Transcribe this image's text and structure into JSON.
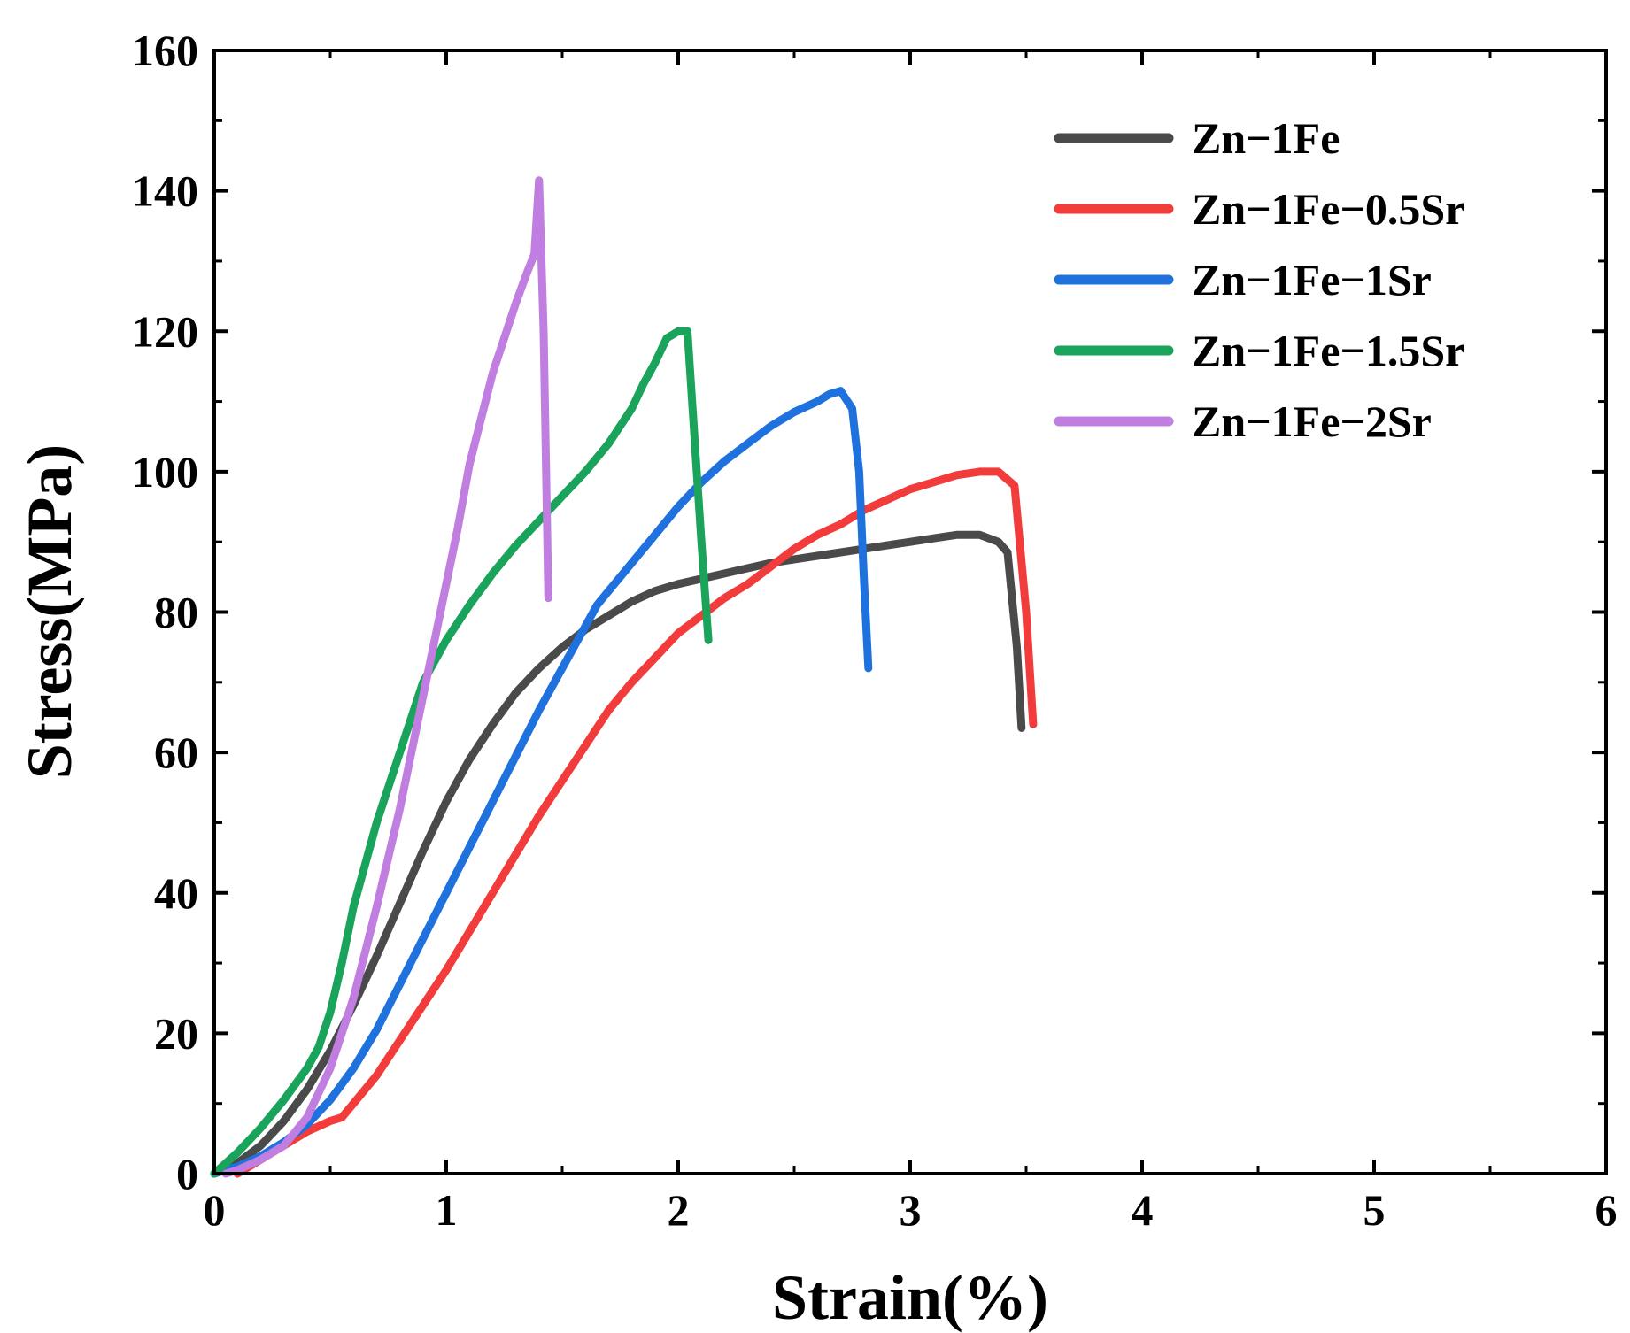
{
  "chart_data": {
    "type": "line",
    "title": "",
    "xlabel": "Strain(%)",
    "ylabel": "Stress(MPa)",
    "xlim": [
      0,
      6
    ],
    "ylim": [
      0,
      160
    ],
    "xticks": [
      0,
      1,
      2,
      3,
      4,
      5,
      6
    ],
    "yticks": [
      0,
      20,
      40,
      60,
      80,
      100,
      120,
      140,
      160
    ],
    "x_minor_step": 0.5,
    "y_minor_step": 10,
    "grid": false,
    "legend_position": "top-right",
    "series": [
      {
        "name": "Zn−1Fe",
        "color": "#4a4a4a",
        "points": [
          [
            0,
            0
          ],
          [
            0.1,
            1.5
          ],
          [
            0.2,
            4
          ],
          [
            0.3,
            7.5
          ],
          [
            0.4,
            12
          ],
          [
            0.5,
            17.5
          ],
          [
            0.6,
            24
          ],
          [
            0.7,
            31
          ],
          [
            0.8,
            38.5
          ],
          [
            0.9,
            46
          ],
          [
            1.0,
            53
          ],
          [
            1.1,
            59
          ],
          [
            1.2,
            64
          ],
          [
            1.3,
            68.5
          ],
          [
            1.4,
            72
          ],
          [
            1.5,
            75
          ],
          [
            1.6,
            77.5
          ],
          [
            1.7,
            79.5
          ],
          [
            1.8,
            81.5
          ],
          [
            1.9,
            83
          ],
          [
            2.0,
            84
          ],
          [
            2.2,
            85.5
          ],
          [
            2.4,
            87
          ],
          [
            2.6,
            88
          ],
          [
            2.8,
            89
          ],
          [
            3.0,
            90
          ],
          [
            3.1,
            90.5
          ],
          [
            3.2,
            91
          ],
          [
            3.3,
            91
          ],
          [
            3.38,
            90
          ],
          [
            3.42,
            88.5
          ],
          [
            3.46,
            75
          ],
          [
            3.48,
            63.5
          ]
        ]
      },
      {
        "name": "Zn−1Fe−0.5Sr",
        "color": "#f23b3b",
        "points": [
          [
            0.1,
            0
          ],
          [
            0.2,
            2
          ],
          [
            0.3,
            4
          ],
          [
            0.4,
            6
          ],
          [
            0.5,
            7.5
          ],
          [
            0.55,
            8
          ],
          [
            0.6,
            10
          ],
          [
            0.7,
            14
          ],
          [
            0.8,
            19
          ],
          [
            0.9,
            24
          ],
          [
            1.0,
            29
          ],
          [
            1.1,
            34.5
          ],
          [
            1.2,
            40
          ],
          [
            1.3,
            45.5
          ],
          [
            1.4,
            51
          ],
          [
            1.5,
            56
          ],
          [
            1.6,
            61
          ],
          [
            1.7,
            66
          ],
          [
            1.8,
            70
          ],
          [
            1.9,
            73.5
          ],
          [
            2.0,
            77
          ],
          [
            2.1,
            79.5
          ],
          [
            2.2,
            82
          ],
          [
            2.3,
            84
          ],
          [
            2.4,
            86.5
          ],
          [
            2.5,
            89
          ],
          [
            2.6,
            91
          ],
          [
            2.7,
            92.5
          ],
          [
            2.8,
            94.5
          ],
          [
            2.9,
            96
          ],
          [
            3.0,
            97.5
          ],
          [
            3.1,
            98.5
          ],
          [
            3.2,
            99.5
          ],
          [
            3.3,
            100
          ],
          [
            3.38,
            100
          ],
          [
            3.45,
            98
          ],
          [
            3.5,
            80
          ],
          [
            3.53,
            64
          ]
        ]
      },
      {
        "name": "Zn−1Fe−1Sr",
        "color": "#1f72de",
        "points": [
          [
            0,
            0
          ],
          [
            0.1,
            1
          ],
          [
            0.2,
            2.5
          ],
          [
            0.3,
            4.5
          ],
          [
            0.4,
            7
          ],
          [
            0.5,
            10.5
          ],
          [
            0.6,
            15
          ],
          [
            0.7,
            20.5
          ],
          [
            0.8,
            27
          ],
          [
            0.9,
            33.5
          ],
          [
            1.0,
            40
          ],
          [
            1.1,
            46.5
          ],
          [
            1.2,
            53
          ],
          [
            1.3,
            59.5
          ],
          [
            1.4,
            66
          ],
          [
            1.5,
            72
          ],
          [
            1.6,
            78
          ],
          [
            1.65,
            81
          ],
          [
            1.7,
            83
          ],
          [
            1.8,
            87
          ],
          [
            1.9,
            91
          ],
          [
            2.0,
            95
          ],
          [
            2.1,
            98.5
          ],
          [
            2.2,
            101.5
          ],
          [
            2.3,
            104
          ],
          [
            2.4,
            106.5
          ],
          [
            2.5,
            108.5
          ],
          [
            2.6,
            110
          ],
          [
            2.65,
            111
          ],
          [
            2.7,
            111.5
          ],
          [
            2.75,
            109
          ],
          [
            2.78,
            100
          ],
          [
            2.8,
            85
          ],
          [
            2.82,
            72
          ]
        ]
      },
      {
        "name": "Zn−1Fe−1.5Sr",
        "color": "#1aa35a",
        "points": [
          [
            0,
            0
          ],
          [
            0.1,
            3
          ],
          [
            0.2,
            6.5
          ],
          [
            0.3,
            10.5
          ],
          [
            0.4,
            15
          ],
          [
            0.45,
            18
          ],
          [
            0.5,
            23
          ],
          [
            0.55,
            30
          ],
          [
            0.6,
            38
          ],
          [
            0.7,
            50
          ],
          [
            0.8,
            60
          ],
          [
            0.9,
            70
          ],
          [
            1.0,
            76
          ],
          [
            1.1,
            81
          ],
          [
            1.2,
            85.5
          ],
          [
            1.3,
            89.5
          ],
          [
            1.4,
            93
          ],
          [
            1.5,
            96.5
          ],
          [
            1.6,
            100
          ],
          [
            1.7,
            104
          ],
          [
            1.75,
            106.5
          ],
          [
            1.8,
            109
          ],
          [
            1.85,
            112.5
          ],
          [
            1.9,
            115.5
          ],
          [
            1.95,
            119
          ],
          [
            2.0,
            120
          ],
          [
            2.04,
            120
          ],
          [
            2.06,
            110
          ],
          [
            2.1,
            90
          ],
          [
            2.13,
            76
          ]
        ]
      },
      {
        "name": "Zn−1Fe−2Sr",
        "color": "#c07ee0",
        "points": [
          [
            0.05,
            0
          ],
          [
            0.1,
            0.5
          ],
          [
            0.2,
            2
          ],
          [
            0.3,
            4
          ],
          [
            0.4,
            8
          ],
          [
            0.5,
            15
          ],
          [
            0.6,
            25
          ],
          [
            0.7,
            38
          ],
          [
            0.8,
            52
          ],
          [
            0.9,
            68
          ],
          [
            1.0,
            84
          ],
          [
            1.05,
            92
          ],
          [
            1.1,
            101
          ],
          [
            1.2,
            114
          ],
          [
            1.3,
            124
          ],
          [
            1.35,
            128.5
          ],
          [
            1.38,
            131
          ],
          [
            1.4,
            141.5
          ],
          [
            1.42,
            120
          ],
          [
            1.44,
            82
          ]
        ]
      }
    ]
  }
}
